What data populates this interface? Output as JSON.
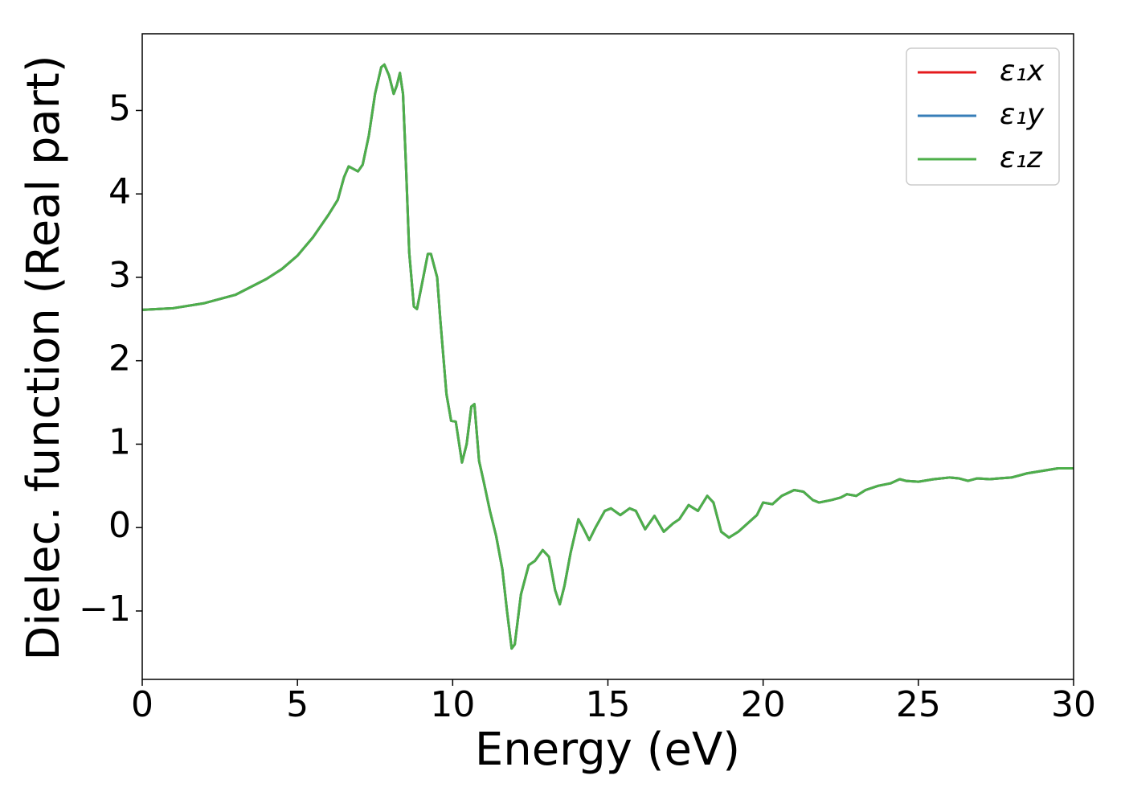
{
  "chart_data": {
    "type": "line",
    "xlabel": "Energy (eV)",
    "ylabel": "Dielec. function (Real part)",
    "x": [
      0,
      1,
      2,
      3,
      4,
      4.5,
      5,
      5.5,
      6,
      6.3,
      6.5,
      6.65,
      6.8,
      6.95,
      7.1,
      7.3,
      7.5,
      7.7,
      7.8,
      7.95,
      8.1,
      8.2,
      8.3,
      8.4,
      8.5,
      8.6,
      8.75,
      8.85,
      9.0,
      9.2,
      9.3,
      9.5,
      9.6,
      9.8,
      9.95,
      10.1,
      10.3,
      10.45,
      10.6,
      10.7,
      10.85,
      11.0,
      11.2,
      11.4,
      11.6,
      11.75,
      11.9,
      12.0,
      12.2,
      12.45,
      12.65,
      12.9,
      13.1,
      13.3,
      13.45,
      13.6,
      13.8,
      14.05,
      14.2,
      14.4,
      14.6,
      14.9,
      15.1,
      15.4,
      15.7,
      15.9,
      16.2,
      16.5,
      16.8,
      17.1,
      17.3,
      17.6,
      17.9,
      18.2,
      18.4,
      18.65,
      18.9,
      19.2,
      19.5,
      19.8,
      20.0,
      20.3,
      20.6,
      21.0,
      21.3,
      21.6,
      21.8,
      22.2,
      22.5,
      22.7,
      23.0,
      23.3,
      23.7,
      24.1,
      24.4,
      24.6,
      25.0,
      25.5,
      26.0,
      26.3,
      26.6,
      26.9,
      27.3,
      27.6,
      28.0,
      28.5,
      29.0,
      29.5,
      30.0
    ],
    "series": [
      {
        "name": "ε₁x",
        "color": "#e41a1c",
        "values": [
          2.61,
          2.63,
          2.69,
          2.79,
          2.98,
          3.1,
          3.26,
          3.48,
          3.75,
          3.93,
          4.2,
          4.33,
          4.3,
          4.27,
          4.35,
          4.7,
          5.2,
          5.52,
          5.55,
          5.42,
          5.2,
          5.3,
          5.45,
          5.2,
          4.3,
          3.3,
          2.65,
          2.62,
          2.9,
          3.28,
          3.28,
          3.0,
          2.5,
          1.6,
          1.28,
          1.27,
          0.78,
          1.0,
          1.45,
          1.48,
          0.8,
          0.55,
          0.2,
          -0.1,
          -0.5,
          -1.0,
          -1.45,
          -1.4,
          -0.8,
          -0.45,
          -0.4,
          -0.27,
          -0.35,
          -0.75,
          -0.92,
          -0.7,
          -0.3,
          0.1,
          0.0,
          -0.15,
          0.0,
          0.2,
          0.23,
          0.15,
          0.23,
          0.2,
          -0.02,
          0.14,
          -0.05,
          0.05,
          0.1,
          0.27,
          0.2,
          0.38,
          0.3,
          -0.05,
          -0.12,
          -0.05,
          0.05,
          0.15,
          0.3,
          0.28,
          0.38,
          0.45,
          0.43,
          0.33,
          0.3,
          0.33,
          0.36,
          0.4,
          0.38,
          0.45,
          0.5,
          0.53,
          0.58,
          0.56,
          0.55,
          0.58,
          0.6,
          0.59,
          0.56,
          0.59,
          0.58,
          0.59,
          0.6,
          0.65,
          0.68,
          0.71,
          0.71
        ]
      },
      {
        "name": "ε₁y",
        "color": "#377eb8",
        "values": [
          2.61,
          2.63,
          2.69,
          2.79,
          2.98,
          3.1,
          3.26,
          3.48,
          3.75,
          3.93,
          4.2,
          4.33,
          4.3,
          4.27,
          4.35,
          4.7,
          5.2,
          5.52,
          5.55,
          5.42,
          5.2,
          5.3,
          5.45,
          5.2,
          4.3,
          3.3,
          2.65,
          2.62,
          2.9,
          3.28,
          3.28,
          3.0,
          2.5,
          1.6,
          1.28,
          1.27,
          0.78,
          1.0,
          1.45,
          1.48,
          0.8,
          0.55,
          0.2,
          -0.1,
          -0.5,
          -1.0,
          -1.45,
          -1.4,
          -0.8,
          -0.45,
          -0.4,
          -0.27,
          -0.35,
          -0.75,
          -0.92,
          -0.7,
          -0.3,
          0.1,
          0.0,
          -0.15,
          0.0,
          0.2,
          0.23,
          0.15,
          0.23,
          0.2,
          -0.02,
          0.14,
          -0.05,
          0.05,
          0.1,
          0.27,
          0.2,
          0.38,
          0.3,
          -0.05,
          -0.12,
          -0.05,
          0.05,
          0.15,
          0.3,
          0.28,
          0.38,
          0.45,
          0.43,
          0.33,
          0.3,
          0.33,
          0.36,
          0.4,
          0.38,
          0.45,
          0.5,
          0.53,
          0.58,
          0.56,
          0.55,
          0.58,
          0.6,
          0.59,
          0.56,
          0.59,
          0.58,
          0.59,
          0.6,
          0.65,
          0.68,
          0.71,
          0.71
        ]
      },
      {
        "name": "ε₁z",
        "color": "#4daf4a",
        "values": [
          2.61,
          2.63,
          2.69,
          2.79,
          2.98,
          3.1,
          3.26,
          3.48,
          3.75,
          3.93,
          4.2,
          4.33,
          4.3,
          4.27,
          4.35,
          4.7,
          5.2,
          5.52,
          5.55,
          5.42,
          5.2,
          5.3,
          5.45,
          5.2,
          4.3,
          3.3,
          2.65,
          2.62,
          2.9,
          3.28,
          3.28,
          3.0,
          2.5,
          1.6,
          1.28,
          1.27,
          0.78,
          1.0,
          1.45,
          1.48,
          0.8,
          0.55,
          0.2,
          -0.1,
          -0.5,
          -1.0,
          -1.45,
          -1.4,
          -0.8,
          -0.45,
          -0.4,
          -0.27,
          -0.35,
          -0.75,
          -0.92,
          -0.7,
          -0.3,
          0.1,
          0.0,
          -0.15,
          0.0,
          0.2,
          0.23,
          0.15,
          0.23,
          0.2,
          -0.02,
          0.14,
          -0.05,
          0.05,
          0.1,
          0.27,
          0.2,
          0.38,
          0.3,
          -0.05,
          -0.12,
          -0.05,
          0.05,
          0.15,
          0.3,
          0.28,
          0.38,
          0.45,
          0.43,
          0.33,
          0.3,
          0.33,
          0.36,
          0.4,
          0.38,
          0.45,
          0.5,
          0.53,
          0.58,
          0.56,
          0.55,
          0.58,
          0.6,
          0.59,
          0.56,
          0.59,
          0.58,
          0.59,
          0.6,
          0.65,
          0.68,
          0.71,
          0.71
        ]
      }
    ],
    "xlim": [
      0,
      30
    ],
    "xticks": [
      0,
      5,
      10,
      15,
      20,
      25,
      30
    ],
    "ylim": [
      -1.82,
      5.92
    ],
    "yticks": [
      {
        "value": -1,
        "label": "−1"
      },
      0,
      1,
      2,
      3,
      4,
      5
    ],
    "grid": false,
    "legend": "upper right"
  }
}
